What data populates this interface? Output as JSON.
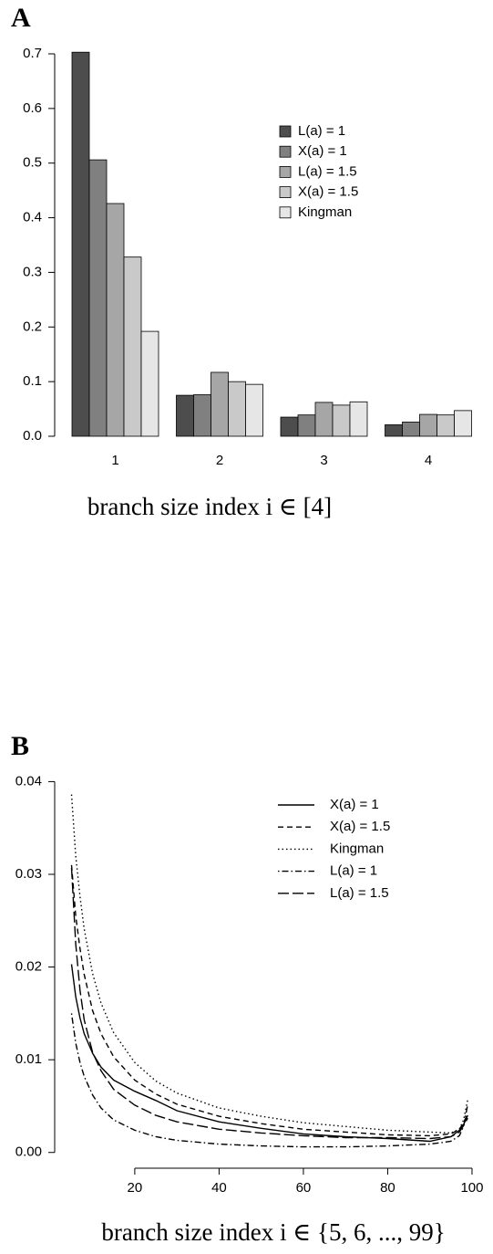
{
  "chart_data": [
    {
      "type": "bar",
      "title": "A",
      "x_label": "branch size index i ∈ [4]",
      "categories": [
        "1",
        "2",
        "3",
        "4"
      ],
      "series": [
        {
          "name": "L(a) = 1",
          "color": "#4d4d4d",
          "values": [
            0.703,
            0.075,
            0.035,
            0.021
          ]
        },
        {
          "name": "X(a) = 1",
          "color": "#808080",
          "values": [
            0.506,
            0.076,
            0.039,
            0.026
          ]
        },
        {
          "name": "L(a) = 1.5",
          "color": "#a6a6a6",
          "values": [
            0.426,
            0.117,
            0.062,
            0.04
          ]
        },
        {
          "name": "X(a) = 1.5",
          "color": "#c9c9c9",
          "values": [
            0.328,
            0.1,
            0.057,
            0.039
          ]
        },
        {
          "name": "Kingman",
          "color": "#e6e6e6",
          "values": [
            0.192,
            0.095,
            0.063,
            0.047
          ]
        }
      ],
      "ylim": [
        0,
        0.7
      ],
      "yticks": [
        {
          "value": 0,
          "label": "0.0"
        },
        0.1,
        0.2,
        0.3,
        0.4,
        0.5,
        0.6,
        0.7
      ],
      "legend": "upper right"
    },
    {
      "type": "line",
      "title": "B",
      "x_label": "branch size index i ∈ {5, 6, ..., 99}",
      "x": [
        5,
        6,
        7,
        8,
        10,
        12,
        15,
        20,
        25,
        30,
        40,
        50,
        60,
        70,
        80,
        90,
        95,
        97,
        98,
        99
      ],
      "series": [
        {
          "name": "X(a) = 1",
          "color": "#000000",
          "linestyle": "solid",
          "values": [
            0.0203,
            0.0168,
            0.0145,
            0.0128,
            0.0107,
            0.0092,
            0.0078,
            0.0066,
            0.0056,
            0.0045,
            0.0033,
            0.0026,
            0.002,
            0.0017,
            0.0015,
            0.0012,
            0.0017,
            0.0024,
            0.003,
            0.004
          ]
        },
        {
          "name": "X(a) = 1.5",
          "color": "#000000",
          "linestyle": "dashed",
          "values": [
            0.031,
            0.0255,
            0.022,
            0.0192,
            0.0153,
            0.0128,
            0.0103,
            0.0078,
            0.0063,
            0.0052,
            0.0039,
            0.0031,
            0.0025,
            0.0022,
            0.0019,
            0.0018,
            0.002,
            0.0025,
            0.0032,
            0.0042
          ]
        },
        {
          "name": "Kingman",
          "color": "#000000",
          "linestyle": "dotted",
          "values": [
            0.0386,
            0.032,
            0.0276,
            0.0241,
            0.0193,
            0.0161,
            0.0129,
            0.0097,
            0.0077,
            0.0064,
            0.0048,
            0.0039,
            0.0032,
            0.0028,
            0.0024,
            0.0022,
            0.0021,
            0.0025,
            0.0035,
            0.0057
          ]
        },
        {
          "name": "L(a) = 1",
          "color": "#000000",
          "linestyle": "dotdash",
          "values": [
            0.015,
            0.0118,
            0.0097,
            0.0082,
            0.0062,
            0.0048,
            0.0035,
            0.0024,
            0.0017,
            0.0013,
            0.0009,
            0.0007,
            0.0006,
            0.0006,
            0.0007,
            0.0009,
            0.0012,
            0.0018,
            0.0028,
            0.0052
          ]
        },
        {
          "name": "L(a) = 1.5",
          "color": "#000000",
          "linestyle": "longdash",
          "values": [
            0.0307,
            0.0225,
            0.0175,
            0.0143,
            0.0108,
            0.0088,
            0.0068,
            0.0051,
            0.004,
            0.0033,
            0.0025,
            0.0021,
            0.0018,
            0.0016,
            0.0016,
            0.0015,
            0.0017,
            0.0022,
            0.0029,
            0.0037
          ]
        }
      ],
      "xlim": [
        1,
        102.6
      ],
      "ylim": [
        -0.0017,
        0.0426
      ],
      "xticks": [
        20,
        40,
        60,
        80,
        100
      ],
      "yticks": [
        {
          "value": 0,
          "label": "0.00"
        },
        0.01,
        0.02,
        0.03,
        0.04
      ],
      "legend": "upper right"
    }
  ]
}
